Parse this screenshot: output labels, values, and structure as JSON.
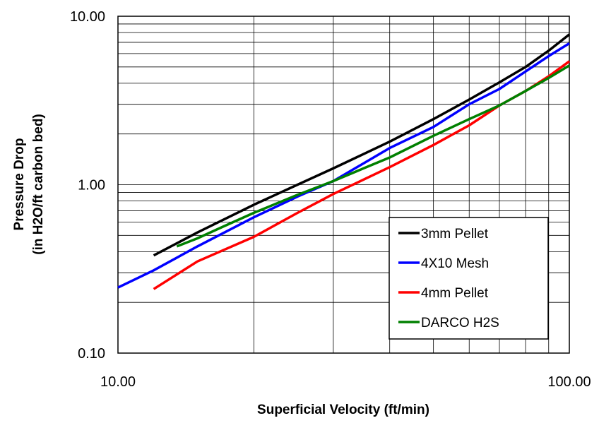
{
  "chart_data": {
    "type": "line",
    "xscale": "log",
    "yscale": "log",
    "xlim": [
      10,
      100
    ],
    "ylim": [
      0.1,
      10
    ],
    "grid": true,
    "legend_position": "bottom-right",
    "xlabel": "Superficial Velocity (ft/min)",
    "ylabel_line1": "Pressure Drop",
    "ylabel_line2": "(in H2O/ft carbon bed)",
    "x_ticks": [
      "10.00",
      "100.00"
    ],
    "y_ticks": [
      "0.10",
      "1.00",
      "10.00"
    ],
    "series": [
      {
        "name": "3mm Pellet",
        "color": "#000000",
        "x": [
          12,
          15,
          20,
          25,
          30,
          40,
          50,
          60,
          70,
          80,
          90,
          100
        ],
        "y": [
          0.38,
          0.52,
          0.76,
          1.0,
          1.25,
          1.8,
          2.45,
          3.2,
          4.05,
          5.0,
          6.25,
          7.8
        ]
      },
      {
        "name": "4X10 Mesh",
        "color": "#0000ff",
        "x": [
          10,
          12,
          15,
          20,
          25,
          30,
          40,
          50,
          60,
          70,
          80,
          90,
          100
        ],
        "y": [
          0.245,
          0.31,
          0.43,
          0.64,
          0.85,
          1.05,
          1.65,
          2.2,
          3.0,
          3.7,
          4.7,
          5.8,
          6.9
        ]
      },
      {
        "name": "4mm Pellet",
        "color": "#ff0000",
        "x": [
          12,
          15,
          20,
          25,
          30,
          40,
          50,
          60,
          70,
          80,
          90,
          100
        ],
        "y": [
          0.24,
          0.35,
          0.49,
          0.68,
          0.88,
          1.27,
          1.72,
          2.25,
          2.95,
          3.6,
          4.4,
          5.4
        ]
      },
      {
        "name": "DARCO H2S",
        "color": "#008000",
        "x": [
          13.5,
          15,
          17,
          20,
          25,
          30,
          35,
          40,
          50,
          60,
          70,
          80,
          90,
          100
        ],
        "y": [
          0.43,
          0.48,
          0.56,
          0.68,
          0.87,
          1.05,
          1.25,
          1.45,
          1.95,
          2.45,
          2.95,
          3.6,
          4.3,
          5.1
        ]
      }
    ]
  }
}
